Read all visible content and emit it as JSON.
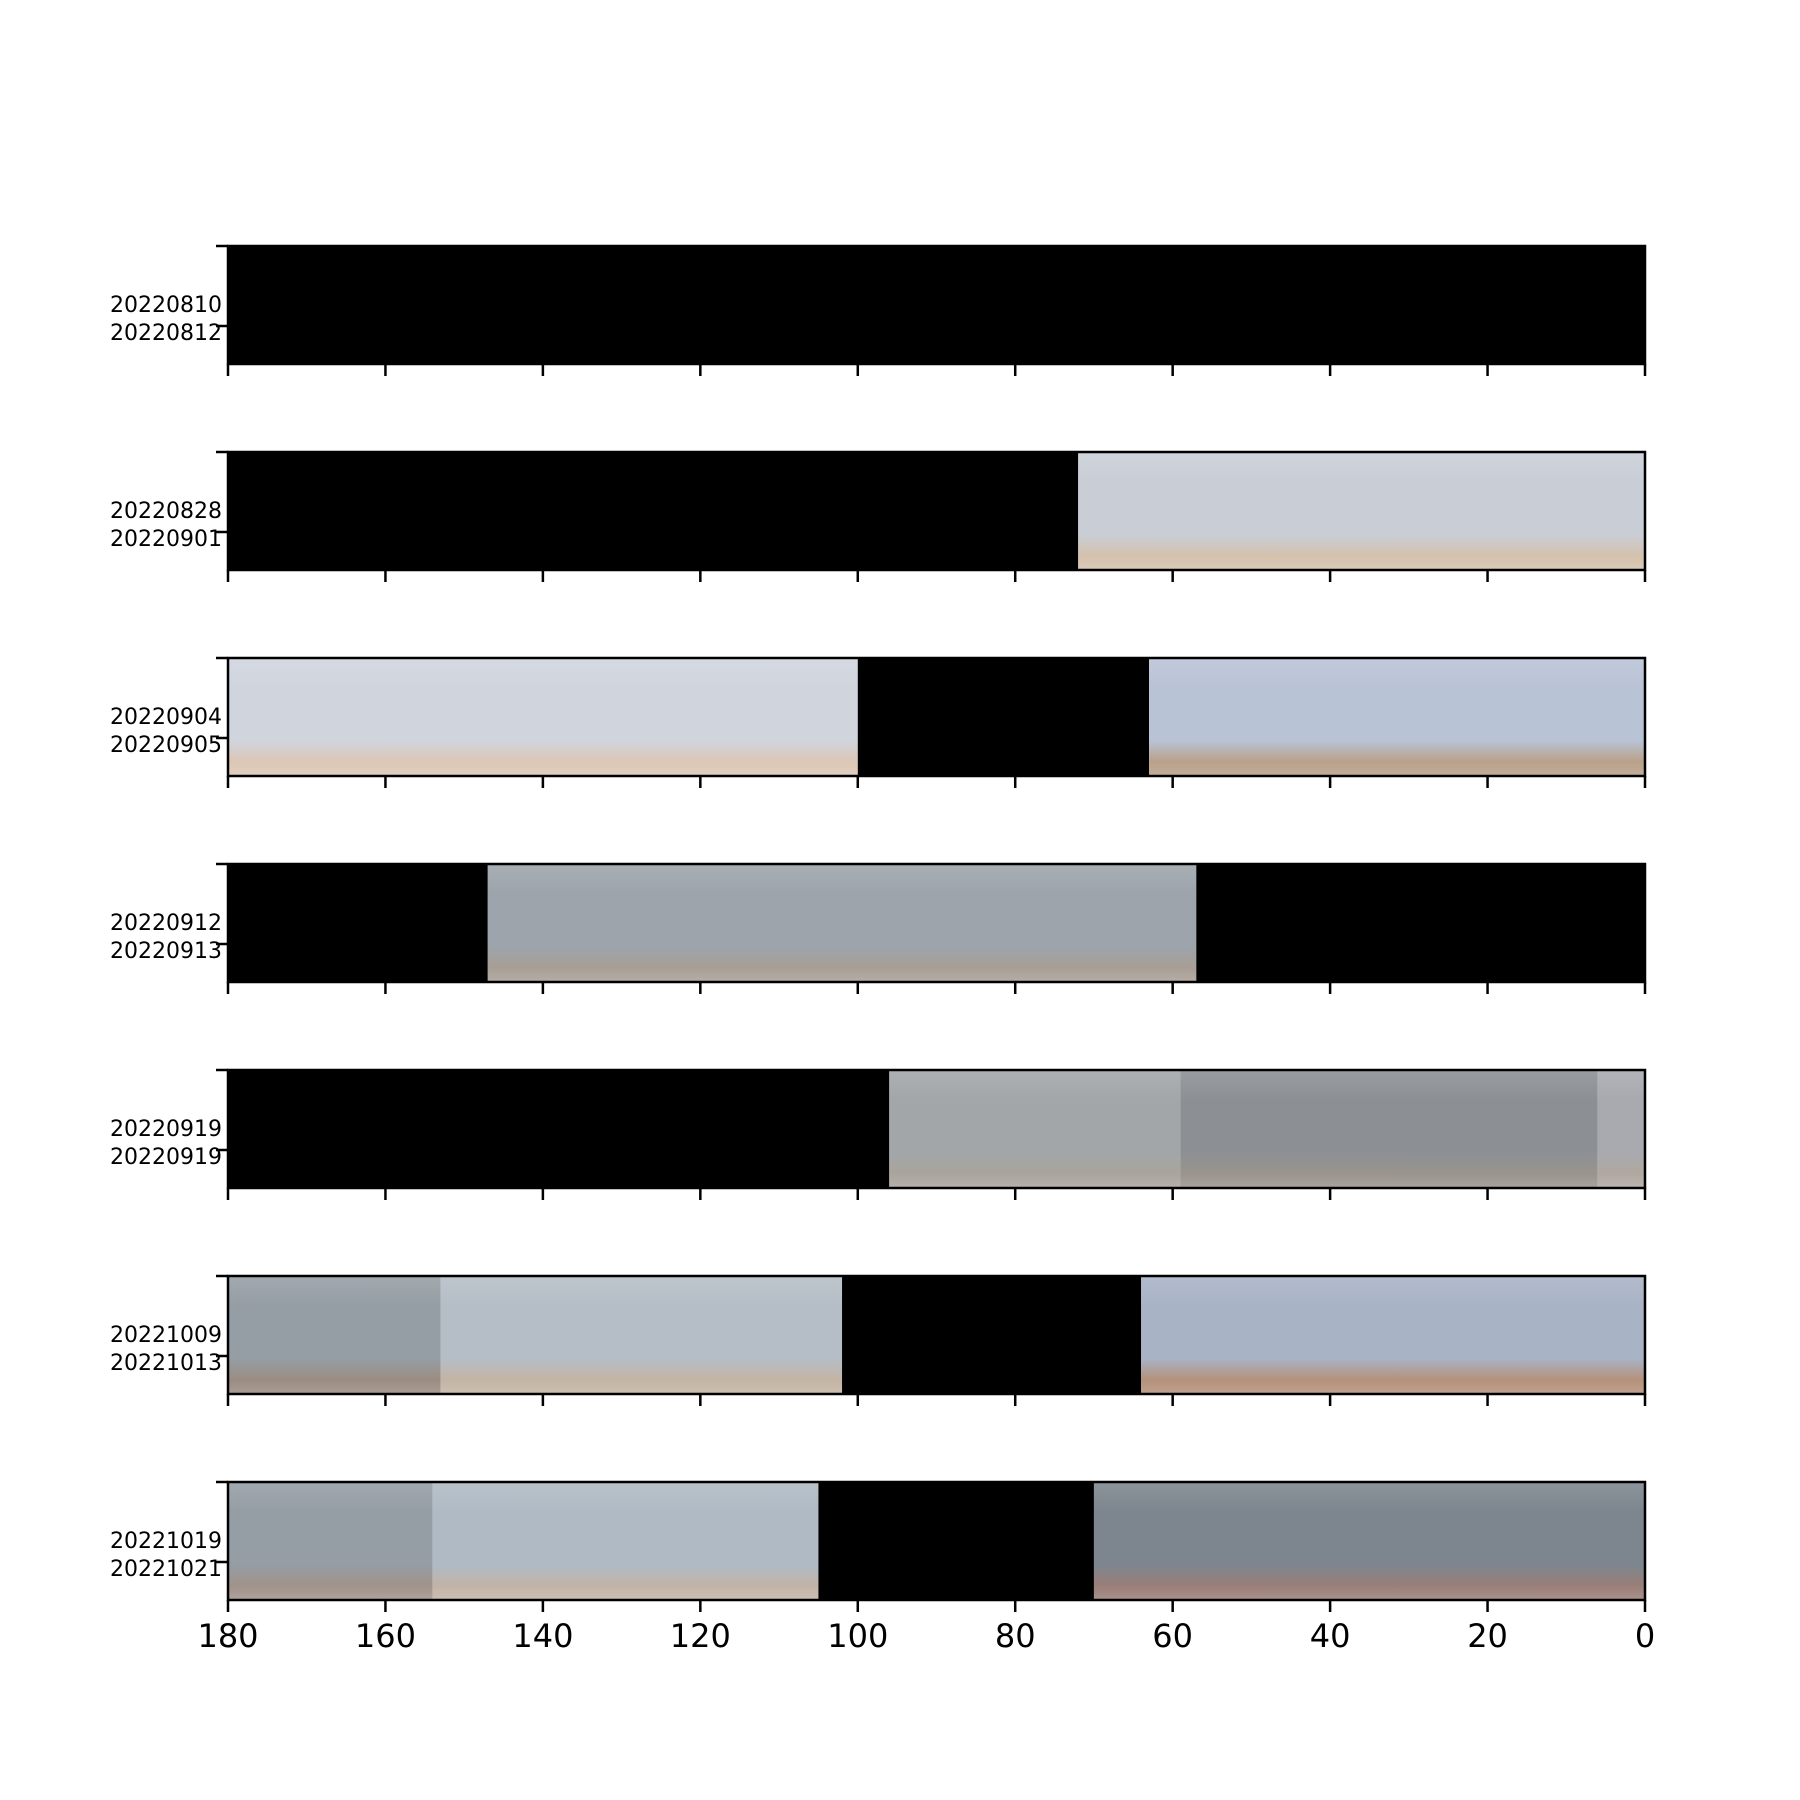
{
  "chart_data": {
    "type": "heatmap",
    "description_of_panels": "stacked image strips over a reversed angle axis",
    "x_axis": {
      "ticks": [
        180,
        160,
        140,
        120,
        100,
        80,
        60,
        40,
        20,
        0
      ],
      "xlim": [
        180,
        0
      ],
      "reversed": true
    },
    "panels": [
      {
        "date_start": "20220810",
        "date_end": "20220812",
        "segments": [
          {
            "from": 180,
            "to": 0,
            "kind": "no-data",
            "color": "#000000"
          }
        ]
      },
      {
        "date_start": "20220828",
        "date_end": "20220901",
        "segments": [
          {
            "from": 180,
            "to": 72,
            "kind": "no-data",
            "color": "#000000"
          },
          {
            "from": 72,
            "to": 0,
            "kind": "image",
            "sky": "#c9ced6",
            "horizon": "#d4c1ad"
          }
        ]
      },
      {
        "date_start": "20220904",
        "date_end": "20220905",
        "segments": [
          {
            "from": 180,
            "to": 100,
            "kind": "image",
            "sky": "#d0d4dd",
            "horizon": "#dcc7b5"
          },
          {
            "from": 100,
            "to": 63,
            "kind": "no-data",
            "color": "#000000"
          },
          {
            "from": 63,
            "to": 0,
            "kind": "image",
            "sky": "#b9c3d6",
            "horizon": "#b9a089"
          }
        ]
      },
      {
        "date_start": "20220912",
        "date_end": "20220913",
        "segments": [
          {
            "from": 180,
            "to": 147,
            "kind": "no-data",
            "color": "#000000"
          },
          {
            "from": 147,
            "to": 57,
            "kind": "image",
            "sky": "#9da4ab",
            "horizon": "#a89e96"
          },
          {
            "from": 57,
            "to": 0,
            "kind": "no-data",
            "color": "#000000"
          }
        ]
      },
      {
        "date_start": "20220919",
        "date_end": "20220919",
        "segments": [
          {
            "from": 180,
            "to": 96,
            "kind": "no-data",
            "color": "#000000"
          },
          {
            "from": 96,
            "to": 59,
            "kind": "image",
            "sky": "#a2a6a8",
            "horizon": "#a9a49c"
          },
          {
            "from": 59,
            "to": 6,
            "kind": "image",
            "sky": "#8c9095",
            "horizon": "#9a948d"
          },
          {
            "from": 6,
            "to": 0,
            "kind": "image",
            "sky": "#a8aab0",
            "horizon": "#b0a8a0"
          }
        ]
      },
      {
        "date_start": "20221009",
        "date_end": "20221013",
        "segments": [
          {
            "from": 180,
            "to": 153,
            "kind": "image",
            "sky": "#959ea4",
            "horizon": "#9b8c82"
          },
          {
            "from": 153,
            "to": 102,
            "kind": "image",
            "sky": "#b5bec6",
            "horizon": "#c3b4a4"
          },
          {
            "from": 102,
            "to": 64,
            "kind": "no-data",
            "color": "#000000"
          },
          {
            "from": 64,
            "to": 0,
            "kind": "image",
            "sky": "#a9b3c6",
            "horizon": "#b4917a"
          }
        ]
      },
      {
        "date_start": "20221019",
        "date_end": "20221021",
        "segments": [
          {
            "from": 180,
            "to": 154,
            "kind": "image",
            "sky": "#959ea4",
            "horizon": "#a1928b"
          },
          {
            "from": 154,
            "to": 105,
            "kind": "image",
            "sky": "#afbac4",
            "horizon": "#c2b3a6"
          },
          {
            "from": 105,
            "to": 70,
            "kind": "no-data",
            "color": "#000000"
          },
          {
            "from": 70,
            "to": 0,
            "kind": "image",
            "sky": "#7d868e",
            "horizon": "#9a7e78"
          }
        ]
      }
    ]
  }
}
